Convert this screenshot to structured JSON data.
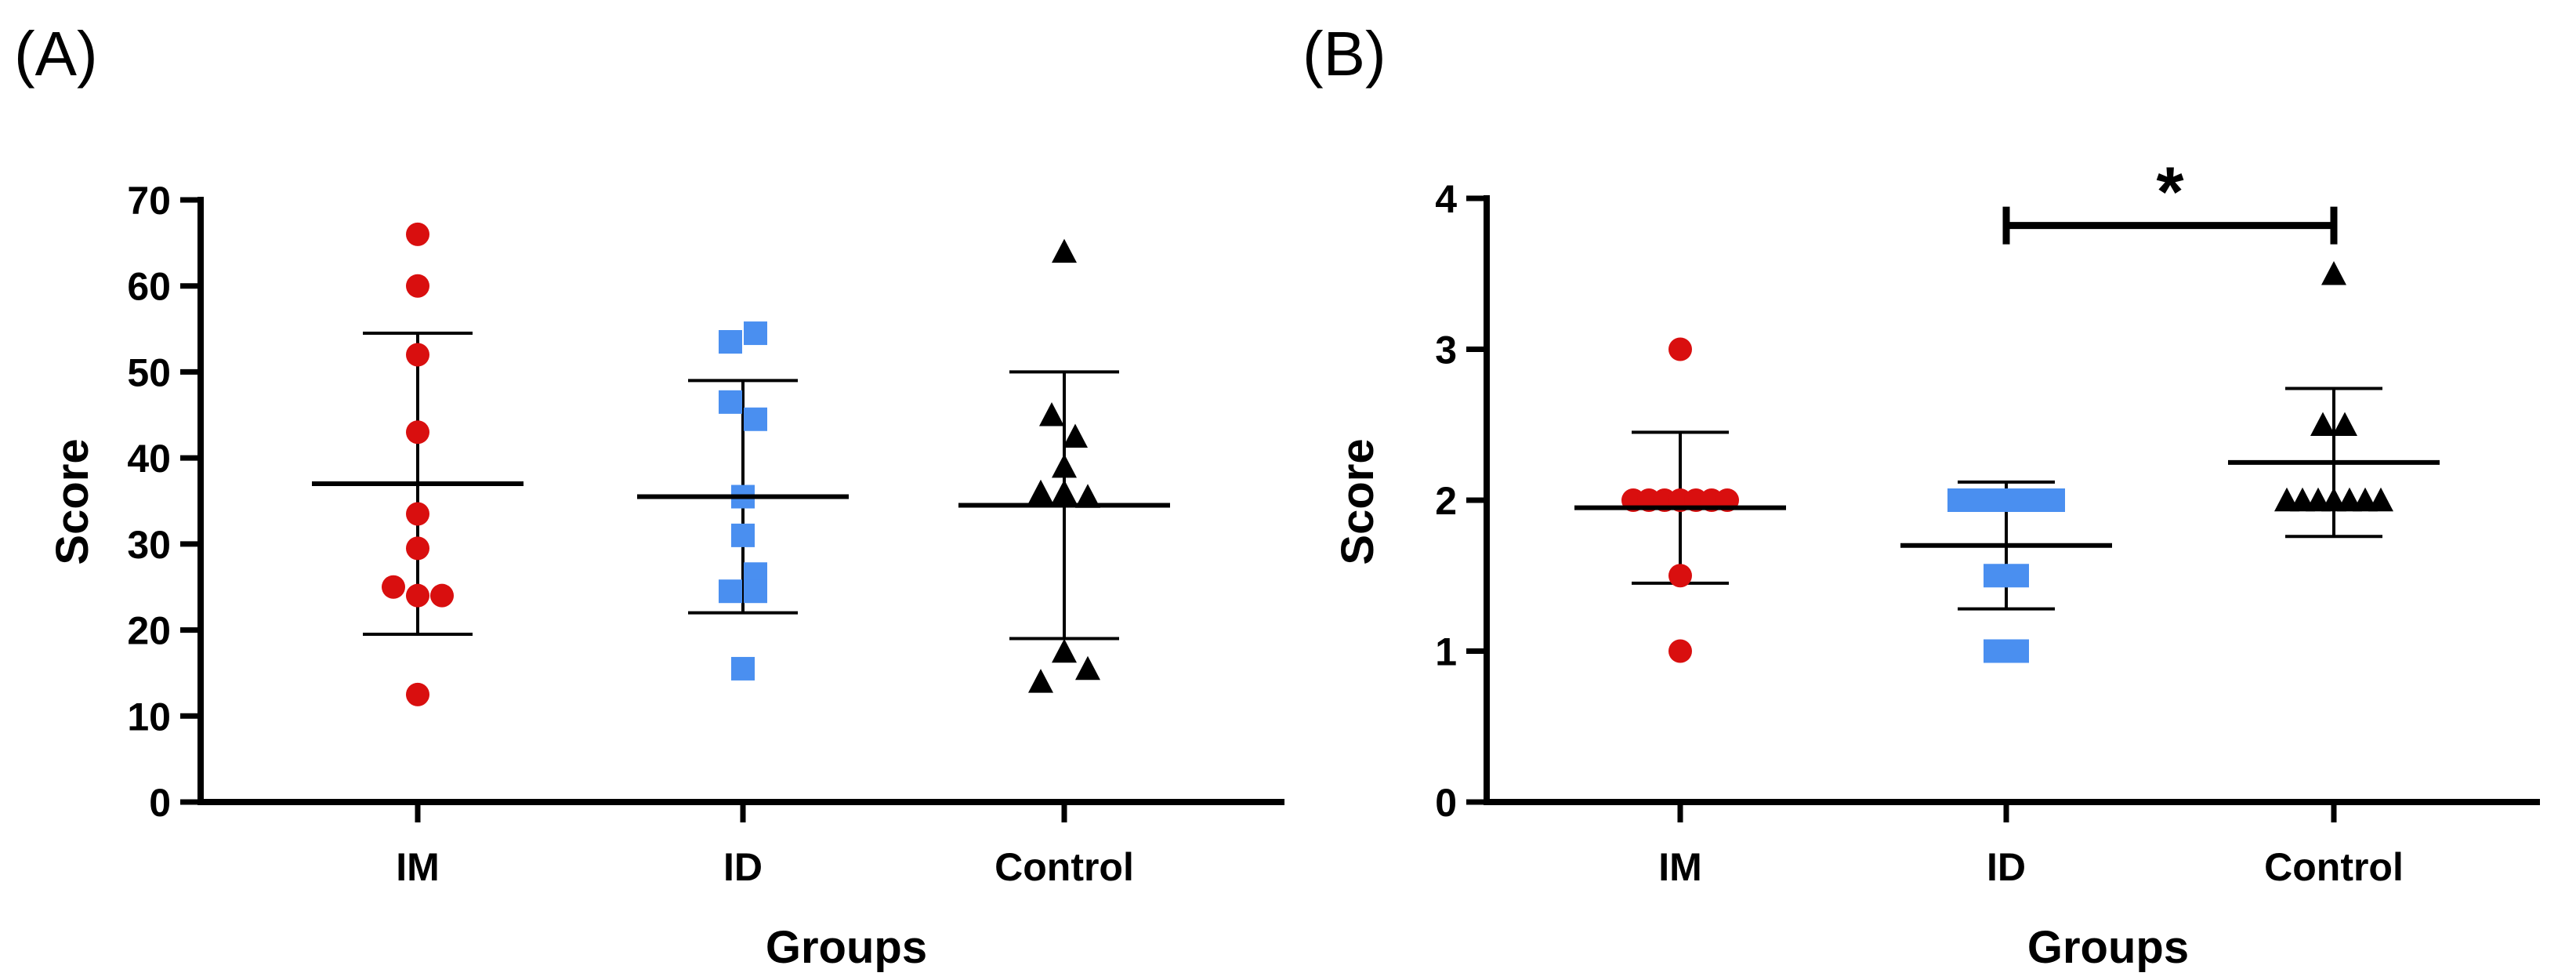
{
  "chart_data": [
    {
      "panel_label": "(A)",
      "type": "scatter",
      "xlabel": "Groups",
      "ylabel": "Score",
      "ylim": [
        0,
        70
      ],
      "yticks": [
        "0",
        "10",
        "20",
        "30",
        "40",
        "50",
        "60",
        "70"
      ],
      "categories": [
        "IM",
        "ID",
        "Control"
      ],
      "series": [
        {
          "name": "IM",
          "marker": "circle",
          "color": "#d90f0f",
          "points": [
            [
              0,
              66
            ],
            [
              0,
              60
            ],
            [
              0,
              52
            ],
            [
              0,
              43
            ],
            [
              0,
              33.5
            ],
            [
              0,
              29.5
            ],
            [
              -0.31,
              25
            ],
            [
              0,
              24
            ],
            [
              0.31,
              24
            ],
            [
              0,
              12.5
            ]
          ],
          "mean": 37,
          "err_low": 19.5,
          "err_high": 54.5
        },
        {
          "name": "ID",
          "marker": "square",
          "color": "#4a8ff0",
          "points": [
            [
              -0.16,
              53.5
            ],
            [
              0.16,
              54.5
            ],
            [
              -0.16,
              46.5
            ],
            [
              0.16,
              44.5
            ],
            [
              0,
              35.5
            ],
            [
              0,
              31
            ],
            [
              0.16,
              26.5
            ],
            [
              -0.16,
              24.5
            ],
            [
              0.16,
              24.5
            ],
            [
              0,
              15.5
            ]
          ],
          "mean": 35.5,
          "err_low": 22,
          "err_high": 49
        },
        {
          "name": "Control",
          "marker": "triangle",
          "color": "#000000",
          "points": [
            [
              0,
              64
            ],
            [
              -0.16,
              45
            ],
            [
              0.14,
              42.5
            ],
            [
              0,
              39
            ],
            [
              -0.3,
              36
            ],
            [
              0,
              36
            ],
            [
              0.3,
              35.5
            ],
            [
              -0.3,
              14
            ],
            [
              0,
              17.5
            ],
            [
              0.3,
              15.5
            ]
          ],
          "mean": 34.5,
          "err_low": 19,
          "err_high": 50
        }
      ]
    },
    {
      "panel_label": "(B)",
      "type": "scatter",
      "xlabel": "Groups",
      "ylabel": "Score",
      "ylim": [
        0,
        4
      ],
      "yticks": [
        "0",
        "1",
        "2",
        "3",
        "4"
      ],
      "categories": [
        "IM",
        "ID",
        "Control"
      ],
      "significance": {
        "from": 1,
        "to": 2,
        "label": "*",
        "y": 3.82
      },
      "series": [
        {
          "name": "IM",
          "marker": "circle",
          "color": "#d90f0f",
          "points": [
            [
              0,
              3
            ],
            [
              -0.6,
              2
            ],
            [
              -0.4,
              2
            ],
            [
              -0.2,
              2
            ],
            [
              0,
              2
            ],
            [
              0.2,
              2
            ],
            [
              0.4,
              2
            ],
            [
              0.6,
              2
            ],
            [
              0,
              1.5
            ],
            [
              0,
              1
            ]
          ],
          "mean": 1.95,
          "err_low": 1.45,
          "err_high": 2.45
        },
        {
          "name": "ID",
          "marker": "square",
          "color": "#4a8ff0",
          "points": [
            [
              -0.6,
              2
            ],
            [
              -0.4,
              2
            ],
            [
              -0.2,
              2
            ],
            [
              0,
              2
            ],
            [
              0.2,
              2
            ],
            [
              0.4,
              2
            ],
            [
              0.6,
              2
            ],
            [
              -0.14,
              1.5
            ],
            [
              0.14,
              1.5
            ],
            [
              -0.14,
              1
            ],
            [
              0.14,
              1
            ]
          ],
          "mean": 1.7,
          "err_low": 1.28,
          "err_high": 2.12
        },
        {
          "name": "Control",
          "marker": "triangle",
          "color": "#000000",
          "points": [
            [
              0,
              3.5
            ],
            [
              -0.14,
              2.5
            ],
            [
              0.14,
              2.5
            ],
            [
              -0.6,
              2
            ],
            [
              -0.4,
              2
            ],
            [
              -0.2,
              2
            ],
            [
              0,
              2
            ],
            [
              0.2,
              2
            ],
            [
              0.4,
              2
            ],
            [
              0.6,
              2
            ]
          ],
          "mean": 2.25,
          "err_low": 1.76,
          "err_high": 2.74
        }
      ]
    }
  ]
}
